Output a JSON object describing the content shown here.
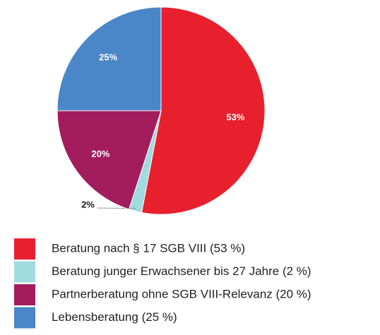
{
  "chart_data": {
    "type": "pie",
    "categories": [
      "Beratung nach § 17 SGB VIII (53 %)",
      "Beratung junger Erwachsener bis 27 Jahre (2 %)",
      "Partnerberatung ohne SGB VIII-Relevanz (20 %)",
      "Lebensberatung (25 %)"
    ],
    "values": [
      53,
      2,
      20,
      25
    ],
    "value_labels": [
      "53%",
      "2%",
      "20%",
      "25%"
    ],
    "colors": [
      "#e8202e",
      "#a0dbe0",
      "#a31c5e",
      "#4a86c8"
    ],
    "legend": "bottom"
  }
}
